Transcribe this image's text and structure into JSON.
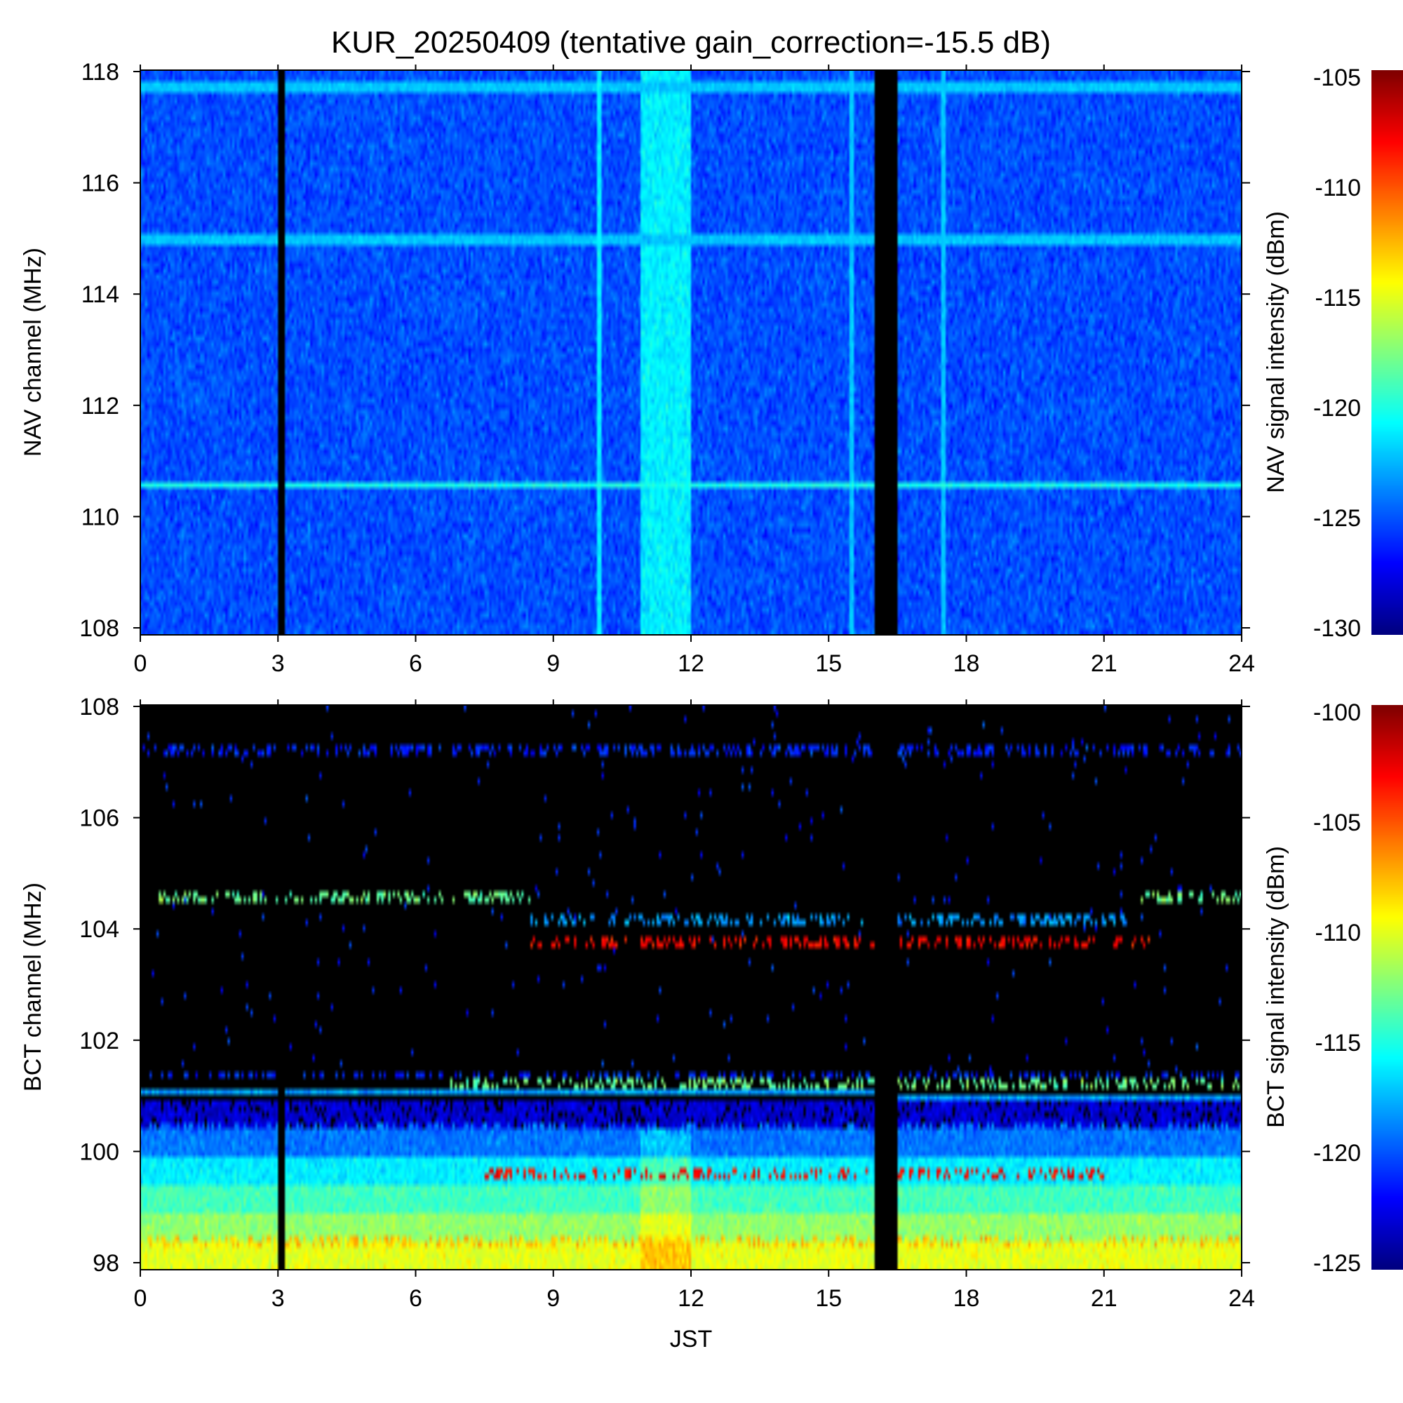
{
  "chart_data": [
    {
      "type": "heatmap",
      "title": "KUR_20250409 (tentative gain_correction=-15.5 dB)",
      "xlabel": "",
      "ylabel": "NAV channel (MHz)",
      "colorbar_label": "NAV signal intensity (dBm)",
      "xlim": [
        0,
        24
      ],
      "ylim": [
        108,
        118
      ],
      "x_ticks": [
        "0",
        "3",
        "6",
        "9",
        "12",
        "15",
        "18",
        "21",
        "24"
      ],
      "y_ticks": [
        "108",
        "110",
        "112",
        "114",
        "116",
        "118"
      ],
      "colorbar_range": [
        -130,
        -105
      ],
      "colorbar_ticks": [
        "-105",
        "-110",
        "-115",
        "-120",
        "-125",
        "-130"
      ],
      "colormap": "jet",
      "background_level_dBm": -125,
      "data_gaps_JST": [
        [
          3.0,
          3.15
        ],
        [
          16.0,
          16.5
        ]
      ],
      "enhanced_interval_JST": [
        10.9,
        12.0
      ],
      "enhanced_interval_level_dBm": -121,
      "bands": [
        {
          "freq_MHz": 110.65,
          "level_dBm": -120,
          "x_range": [
            0,
            24
          ]
        },
        {
          "freq_MHz": 115.0,
          "level_dBm": -122,
          "x_range": [
            0,
            24
          ]
        },
        {
          "freq_MHz": 117.7,
          "level_dBm": -122,
          "x_range": [
            0,
            24
          ]
        }
      ],
      "spikes": [
        {
          "time_JST": 10.0,
          "level_dBm": -121
        },
        {
          "time_JST": 15.5,
          "level_dBm": -122
        },
        {
          "time_JST": 17.5,
          "level_dBm": -122
        }
      ]
    },
    {
      "type": "heatmap",
      "title": "",
      "xlabel": "JST",
      "ylabel": "BCT channel (MHz)",
      "colorbar_label": "BCT signal intensity (dBm)",
      "xlim": [
        0,
        24
      ],
      "ylim": [
        98,
        108
      ],
      "x_ticks": [
        "0",
        "3",
        "6",
        "9",
        "12",
        "15",
        "18",
        "21",
        "24"
      ],
      "y_ticks": [
        "98",
        "100",
        "102",
        "104",
        "106",
        "108"
      ],
      "colorbar_range": [
        -125,
        -100
      ],
      "colorbar_ticks": [
        "-100",
        "-105",
        "-110",
        "-115",
        "-120",
        "-125"
      ],
      "colormap": "jet",
      "below_threshold_color": "#000000",
      "data_gaps_JST": [
        [
          3.0,
          3.15
        ],
        [
          16.0,
          16.5
        ]
      ],
      "enhanced_interval_JST": [
        10.9,
        12.0
      ],
      "continuum": [
        {
          "freq_range_MHz": [
            100.0,
            100.5
          ],
          "level_dBm": -119
        },
        {
          "freq_range_MHz": [
            99.5,
            100.0
          ],
          "level_dBm": -116
        },
        {
          "freq_range_MHz": [
            99.0,
            99.5
          ],
          "level_dBm": -114
        },
        {
          "freq_range_MHz": [
            98.5,
            99.0
          ],
          "level_dBm": -112
        },
        {
          "freq_range_MHz": [
            98.0,
            98.5
          ],
          "level_dBm": -110
        }
      ],
      "noisy_region_MHz": [
        100.5,
        101.0
      ],
      "bands": [
        {
          "freq_MHz": 107.2,
          "level_dBm": -121,
          "x_range": [
            0,
            24
          ],
          "sparse": true
        },
        {
          "freq_MHz": 101.15,
          "level_dBm": -118,
          "x_range": [
            0,
            16
          ]
        },
        {
          "freq_MHz": 101.05,
          "level_dBm": -118,
          "x_range": [
            16.5,
            24
          ]
        },
        {
          "freq_MHz": 104.6,
          "level_dBm": -113,
          "x_range": [
            0.3,
            8.5
          ],
          "sparse": true
        },
        {
          "freq_MHz": 104.6,
          "level_dBm": -113,
          "x_range": [
            21.7,
            24
          ],
          "sparse": true
        },
        {
          "freq_MHz": 104.2,
          "level_dBm": -118,
          "x_range": [
            8.5,
            21.5
          ],
          "sparse": true
        },
        {
          "freq_MHz": 103.8,
          "level_dBm": -103,
          "x_range": [
            8.5,
            22
          ],
          "sparse": true
        },
        {
          "freq_MHz": 101.45,
          "level_dBm": -121,
          "x_range": [
            0,
            24
          ],
          "sparse": true
        },
        {
          "freq_MHz": 101.3,
          "level_dBm": -113,
          "x_range": [
            6.5,
            24
          ],
          "sparse": true
        },
        {
          "freq_MHz": 100.5,
          "level_dBm": -119,
          "x_range": [
            0,
            24
          ],
          "sparse": true
        },
        {
          "freq_MHz": 99.7,
          "level_dBm": -103,
          "x_range": [
            7.5,
            21
          ],
          "sparse": true
        },
        {
          "freq_MHz": 98.5,
          "level_dBm": -108,
          "x_range": [
            0,
            24
          ],
          "sparse": true
        }
      ]
    }
  ]
}
